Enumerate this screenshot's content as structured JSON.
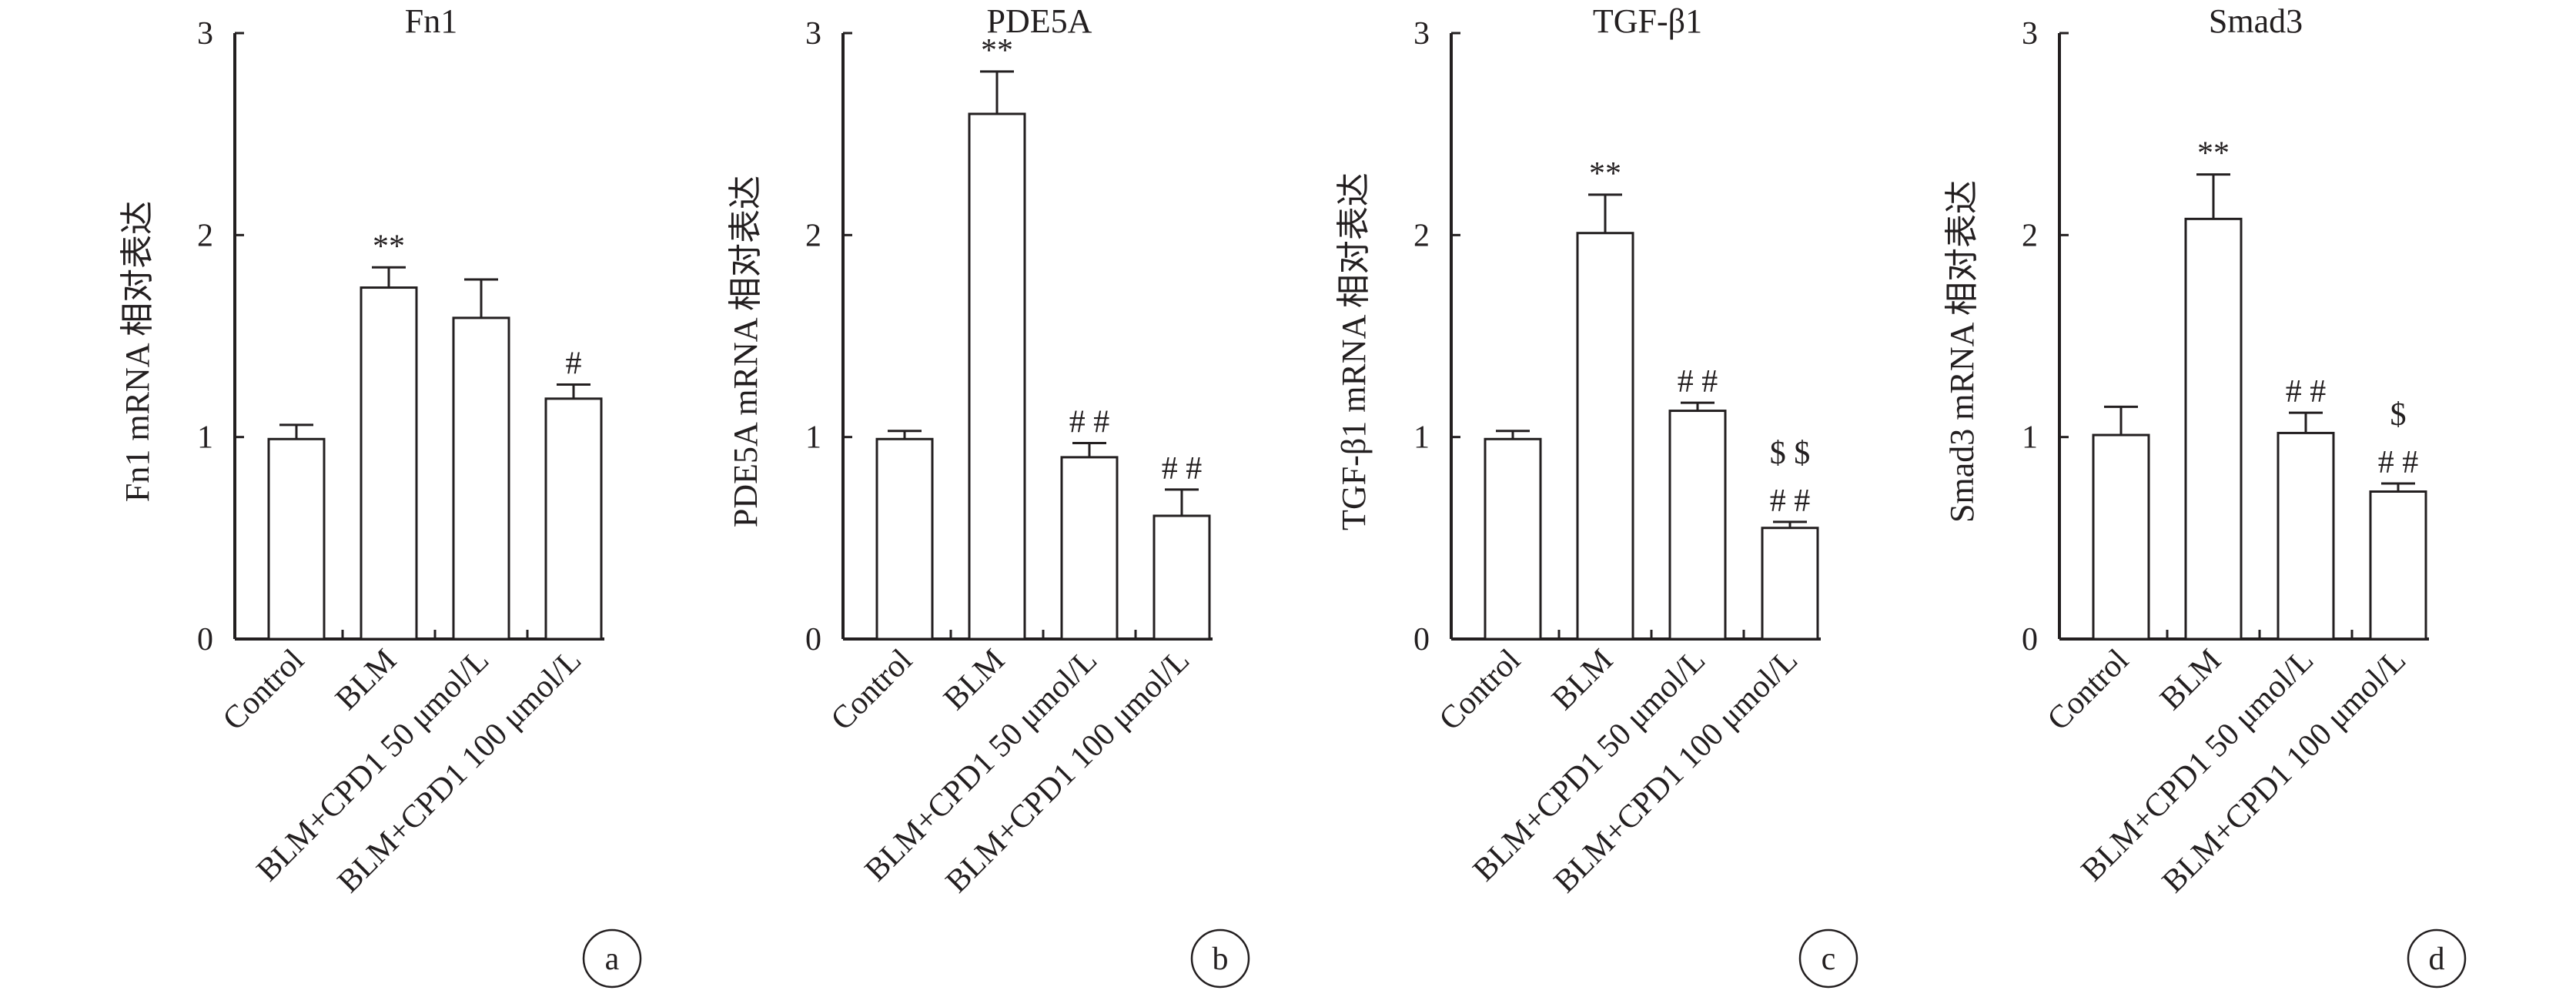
{
  "chart_data": [
    {
      "type": "bar",
      "panel": "a",
      "title": "Fn1",
      "ylabel": "Fn1 mRNA 相对表达",
      "ylim": [
        0,
        3
      ],
      "yticks": [
        0,
        1,
        2,
        3
      ],
      "categories": [
        "Control",
        "BLM",
        "BLM+CPD1 50 μmol/L",
        "BLM+CPD1 100 μmol/L"
      ],
      "values": [
        0.99,
        1.74,
        1.59,
        1.19
      ],
      "errors": [
        0.07,
        0.1,
        0.19,
        0.07
      ],
      "annotations": [
        [],
        [
          "**"
        ],
        [],
        [
          "#"
        ]
      ]
    },
    {
      "type": "bar",
      "panel": "b",
      "title": "PDE5A",
      "ylabel": "PDE5A mRNA 相对表达",
      "ylim": [
        0,
        3
      ],
      "yticks": [
        0,
        1,
        2,
        3
      ],
      "categories": [
        "Control",
        "BLM",
        "BLM+CPD1 50 μmol/L",
        "BLM+CPD1 100 μmol/L"
      ],
      "values": [
        0.99,
        2.6,
        0.9,
        0.61
      ],
      "errors": [
        0.04,
        0.21,
        0.07,
        0.13
      ],
      "annotations": [
        [],
        [
          "**"
        ],
        [
          "# #"
        ],
        [
          "# #"
        ]
      ]
    },
    {
      "type": "bar",
      "panel": "c",
      "title": "TGF-β1",
      "ylabel": "TGF-β1 mRNA 相对表达",
      "ylim": [
        0,
        3
      ],
      "yticks": [
        0,
        1,
        2,
        3
      ],
      "categories": [
        "Control",
        "BLM",
        "BLM+CPD1 50 μmol/L",
        "BLM+CPD1 100 μmol/L"
      ],
      "values": [
        0.99,
        2.01,
        1.13,
        0.55
      ],
      "errors": [
        0.04,
        0.19,
        0.04,
        0.03
      ],
      "annotations": [
        [],
        [
          "**"
        ],
        [
          "# #"
        ],
        [
          "$ $",
          "# #"
        ]
      ]
    },
    {
      "type": "bar",
      "panel": "d",
      "title": "Smad3",
      "ylabel": "Smad3 mRNA 相对表达",
      "ylim": [
        0,
        3
      ],
      "yticks": [
        0,
        1,
        2,
        3
      ],
      "categories": [
        "Control",
        "BLM",
        "BLM+CPD1 50 μmol/L",
        "BLM+CPD1 100 μmol/L"
      ],
      "values": [
        1.01,
        2.08,
        1.02,
        0.73
      ],
      "errors": [
        0.14,
        0.22,
        0.1,
        0.04
      ],
      "annotations": [
        [],
        [
          "**"
        ],
        [
          "# #"
        ],
        [
          "$",
          "# #"
        ]
      ]
    }
  ]
}
